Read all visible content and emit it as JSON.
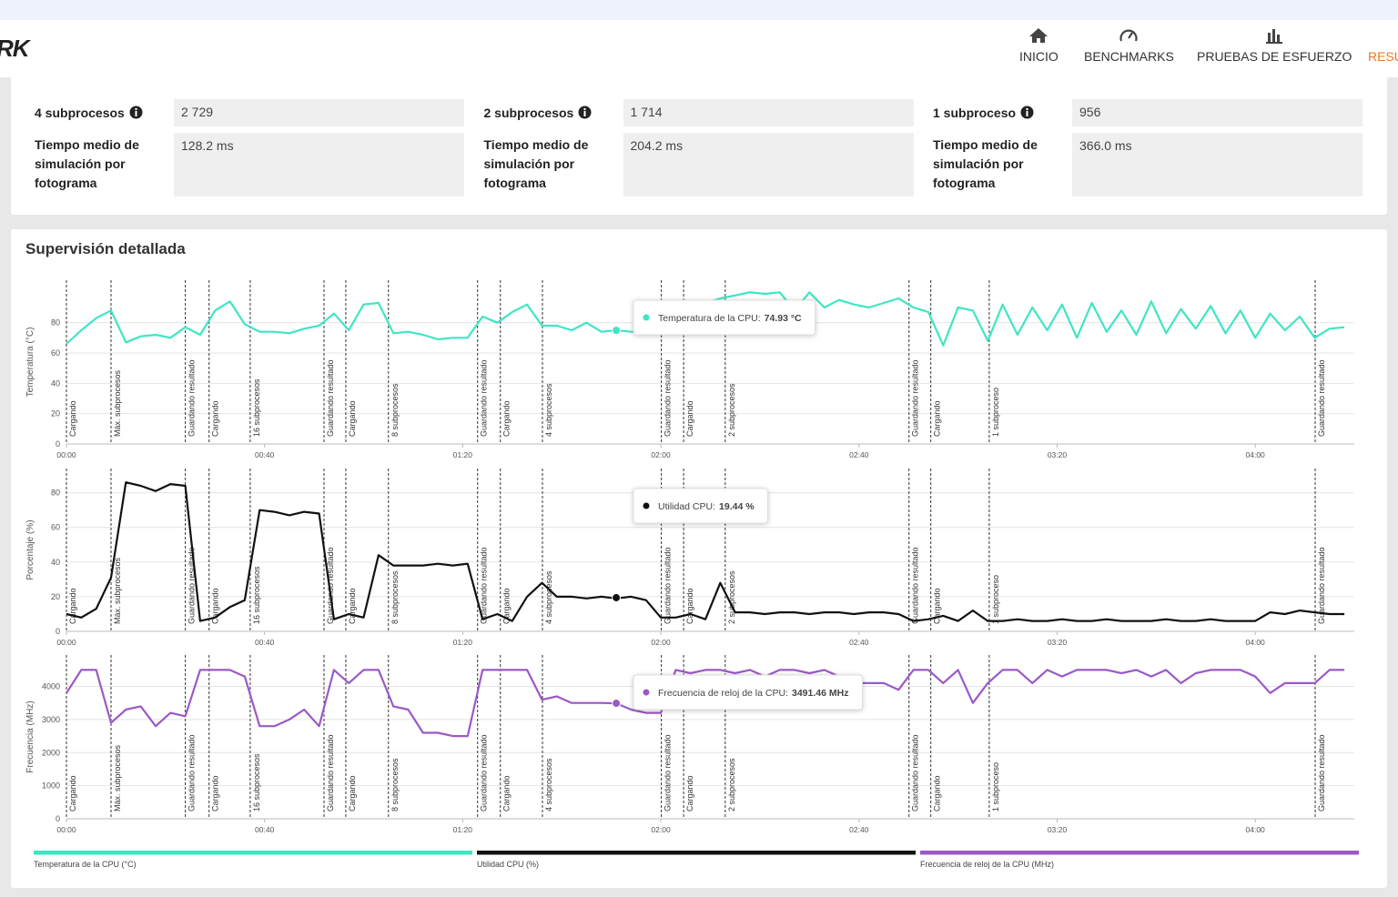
{
  "header": {
    "logo": "RK",
    "nav": [
      {
        "label": "INICIO"
      },
      {
        "label": "BENCHMARKS"
      },
      {
        "label": "PRUEBAS DE ESFUERZO"
      },
      {
        "label": "RESU"
      }
    ]
  },
  "results": {
    "columns": [
      {
        "threads_label": "4 subprocesos",
        "threads_value": "2 729",
        "time_label": "Tiempo medio de simulación por fotograma",
        "time_value": "128.2 ms"
      },
      {
        "threads_label": "2 subprocesos",
        "threads_value": "1 714",
        "time_label": "Tiempo medio de simulación por fotograma",
        "time_value": "204.2 ms"
      },
      {
        "threads_label": "1 subproceso",
        "threads_value": "956",
        "time_label": "Tiempo medio de simulación por fotograma",
        "time_value": "366.0 ms"
      }
    ]
  },
  "monitoring": {
    "title": "Supervisión detallada",
    "phases": [
      {
        "time": 0,
        "label": "Cargando"
      },
      {
        "time": 9,
        "label": "Máx. subprocesos"
      },
      {
        "time": 24,
        "label": "Guardando resultado"
      },
      {
        "time": 28.8,
        "label": "Cargando"
      },
      {
        "time": 37.1,
        "label": "16 subprocesos"
      },
      {
        "time": 52,
        "label": "Guardando resultado"
      },
      {
        "time": 56.4,
        "label": "Cargando"
      },
      {
        "time": 65,
        "label": "8 subprocesos"
      },
      {
        "time": 83,
        "label": "Guardando resultado"
      },
      {
        "time": 87.6,
        "label": "Cargando"
      },
      {
        "time": 96.1,
        "label": "4 subprocesos"
      },
      {
        "time": 120.1,
        "label": "Guardando resultado"
      },
      {
        "time": 124.6,
        "label": "Cargando"
      },
      {
        "time": 133,
        "label": "2 subprocesos"
      },
      {
        "time": 170.1,
        "label": "Guardando resultado"
      },
      {
        "time": 174.5,
        "label": "Cargando"
      },
      {
        "time": 186.3,
        "label": "1 subproceso"
      },
      {
        "time": 252.1,
        "label": "Guardando resultado"
      }
    ]
  },
  "chart_data": [
    {
      "type": "line",
      "ylabel": "Temperatura (°C)",
      "xlim": [
        0,
        260
      ],
      "ylim": [
        0,
        108
      ],
      "yticks": [
        0,
        20,
        40,
        60,
        80
      ],
      "xticks": [
        {
          "value": 0,
          "label": "00:00"
        },
        {
          "value": 40,
          "label": "00:40"
        },
        {
          "value": 80,
          "label": "01:20"
        },
        {
          "value": 120,
          "label": "02:00"
        },
        {
          "value": 160,
          "label": "02:40"
        },
        {
          "value": 200,
          "label": "03:20"
        },
        {
          "value": 240,
          "label": "04:00"
        }
      ],
      "x": [
        0,
        3,
        6,
        9,
        12,
        15,
        18,
        21,
        24,
        27,
        30,
        33,
        36,
        39,
        42,
        45,
        48,
        51,
        54,
        57,
        60,
        63,
        66,
        69,
        72,
        75,
        78,
        81,
        84,
        87,
        90,
        93,
        96,
        99,
        102,
        105,
        108,
        111,
        114,
        117,
        120,
        123,
        126,
        129,
        132,
        135,
        138,
        141,
        144,
        147,
        150,
        153,
        156,
        159,
        162,
        165,
        168,
        171,
        174,
        177,
        180,
        183,
        186,
        189,
        192,
        195,
        198,
        201,
        204,
        207,
        210,
        213,
        216,
        219,
        222,
        225,
        228,
        231,
        234,
        237,
        240,
        243,
        246,
        249,
        252,
        255,
        258
      ],
      "series": [
        {
          "name": "Temperatura de la CPU (°C)",
          "color": "#3ee6c3",
          "values": [
            66,
            75,
            83,
            88,
            67,
            71,
            72,
            70,
            77,
            72,
            88,
            94,
            79,
            74,
            74,
            73,
            76,
            78,
            86,
            75,
            92,
            93,
            73,
            74,
            72,
            69,
            70,
            70,
            84,
            80,
            87,
            92,
            78,
            78,
            75,
            80,
            74,
            75,
            74,
            73,
            78,
            77,
            90,
            93,
            96,
            98,
            100,
            99,
            100,
            88,
            100,
            90,
            95,
            92,
            90,
            93,
            96,
            90,
            87,
            65,
            90,
            88,
            68,
            92,
            72,
            90,
            75,
            92,
            70,
            93,
            74,
            88,
            72,
            94,
            73,
            89,
            76,
            91,
            73,
            88,
            70,
            86,
            75,
            84,
            70,
            76,
            77
          ]
        }
      ],
      "tooltip": {
        "label": "Temperatura de la CPU:",
        "x": 111,
        "value": 74.93,
        "value_label": "74.93 °C"
      }
    },
    {
      "type": "line",
      "ylabel": "Porcentaje (%)",
      "xlim": [
        0,
        260
      ],
      "ylim": [
        0,
        94
      ],
      "yticks": [
        0,
        20,
        40,
        60,
        80
      ],
      "xticks": [
        {
          "value": 0,
          "label": "00:00"
        },
        {
          "value": 40,
          "label": "00:40"
        },
        {
          "value": 80,
          "label": "01:20"
        },
        {
          "value": 120,
          "label": "02:00"
        },
        {
          "value": 160,
          "label": "02:40"
        },
        {
          "value": 200,
          "label": "03:20"
        },
        {
          "value": 240,
          "label": "04:00"
        }
      ],
      "x": [
        0,
        3,
        6,
        9,
        12,
        15,
        18,
        21,
        24,
        27,
        30,
        33,
        36,
        39,
        42,
        45,
        48,
        51,
        54,
        57,
        60,
        63,
        66,
        69,
        72,
        75,
        78,
        81,
        84,
        87,
        90,
        93,
        96,
        99,
        102,
        105,
        108,
        111,
        114,
        117,
        120,
        123,
        126,
        129,
        132,
        135,
        138,
        141,
        144,
        147,
        150,
        153,
        156,
        159,
        162,
        165,
        168,
        171,
        174,
        177,
        180,
        183,
        186,
        189,
        192,
        195,
        198,
        201,
        204,
        207,
        210,
        213,
        216,
        219,
        222,
        225,
        228,
        231,
        234,
        237,
        240,
        243,
        246,
        249,
        252,
        255,
        258
      ],
      "series": [
        {
          "name": "Utilidad CPU (%)",
          "color": "#111111",
          "values": [
            10,
            8,
            13,
            31,
            86,
            84,
            81,
            85,
            84,
            6,
            8,
            14,
            18,
            70,
            69,
            67,
            69,
            68,
            7,
            10,
            8,
            44,
            38,
            38,
            38,
            39,
            38,
            39,
            7,
            10,
            6,
            20,
            28,
            20,
            20,
            19,
            20,
            19,
            20,
            18,
            8,
            8,
            10,
            7,
            28,
            11,
            11,
            10,
            11,
            11,
            10,
            11,
            11,
            10,
            11,
            11,
            10,
            6,
            7,
            9,
            6,
            12,
            6,
            6,
            7,
            6,
            6,
            7,
            6,
            6,
            7,
            6,
            6,
            6,
            7,
            6,
            6,
            7,
            6,
            6,
            6,
            11,
            10,
            12,
            11,
            10,
            10
          ]
        }
      ],
      "tooltip": {
        "label": "Utilidad CPU:",
        "x": 111,
        "value": 19.44,
        "value_label": "19.44 %"
      }
    },
    {
      "type": "line",
      "ylabel": "Frecuencia (MHz)",
      "xlim": [
        0,
        260
      ],
      "ylim": [
        0,
        4950
      ],
      "yticks": [
        0,
        1000,
        2000,
        3000,
        4000
      ],
      "xticks": [
        {
          "value": 0,
          "label": "00:00"
        },
        {
          "value": 40,
          "label": "00:40"
        },
        {
          "value": 80,
          "label": "01:20"
        },
        {
          "value": 120,
          "label": "02:00"
        },
        {
          "value": 160,
          "label": "02:40"
        },
        {
          "value": 200,
          "label": "03:20"
        },
        {
          "value": 240,
          "label": "04:00"
        }
      ],
      "x": [
        0,
        3,
        6,
        9,
        12,
        15,
        18,
        21,
        24,
        27,
        30,
        33,
        36,
        39,
        42,
        45,
        48,
        51,
        54,
        57,
        60,
        63,
        66,
        69,
        72,
        75,
        78,
        81,
        84,
        87,
        90,
        93,
        96,
        99,
        102,
        105,
        108,
        111,
        114,
        117,
        120,
        123,
        126,
        129,
        132,
        135,
        138,
        141,
        144,
        147,
        150,
        153,
        156,
        159,
        162,
        165,
        168,
        171,
        174,
        177,
        180,
        183,
        186,
        189,
        192,
        195,
        198,
        201,
        204,
        207,
        210,
        213,
        216,
        219,
        222,
        225,
        228,
        231,
        234,
        237,
        240,
        243,
        246,
        249,
        252,
        255,
        258
      ],
      "series": [
        {
          "name": "Frecuencia de reloj de la CPU (MHz)",
          "color": "#9b59c6",
          "values": [
            3800,
            4500,
            4500,
            2900,
            3300,
            3400,
            2800,
            3200,
            3100,
            4500,
            4500,
            4500,
            4300,
            2800,
            2800,
            3000,
            3300,
            2800,
            4500,
            4100,
            4500,
            4500,
            3400,
            3300,
            2600,
            2600,
            2500,
            2500,
            4500,
            4500,
            4500,
            4500,
            3600,
            3700,
            3500,
            3500,
            3500,
            3490,
            3300,
            3200,
            3200,
            4500,
            4400,
            4500,
            4500,
            4400,
            4500,
            4300,
            4500,
            4500,
            4400,
            4500,
            4300,
            4100,
            4100,
            4100,
            3900,
            4500,
            4500,
            4100,
            4500,
            3500,
            4100,
            4500,
            4500,
            4100,
            4500,
            4300,
            4500,
            4500,
            4500,
            4400,
            4500,
            4300,
            4500,
            4100,
            4400,
            4500,
            4500,
            4500,
            4300,
            3800,
            4100,
            4100,
            4100,
            4500,
            4500
          ]
        }
      ],
      "tooltip": {
        "label": "Frecuencia de reloj de la CPU:",
        "x": 111,
        "value": 3491.46,
        "value_label": "3491.46 MHz"
      }
    }
  ]
}
